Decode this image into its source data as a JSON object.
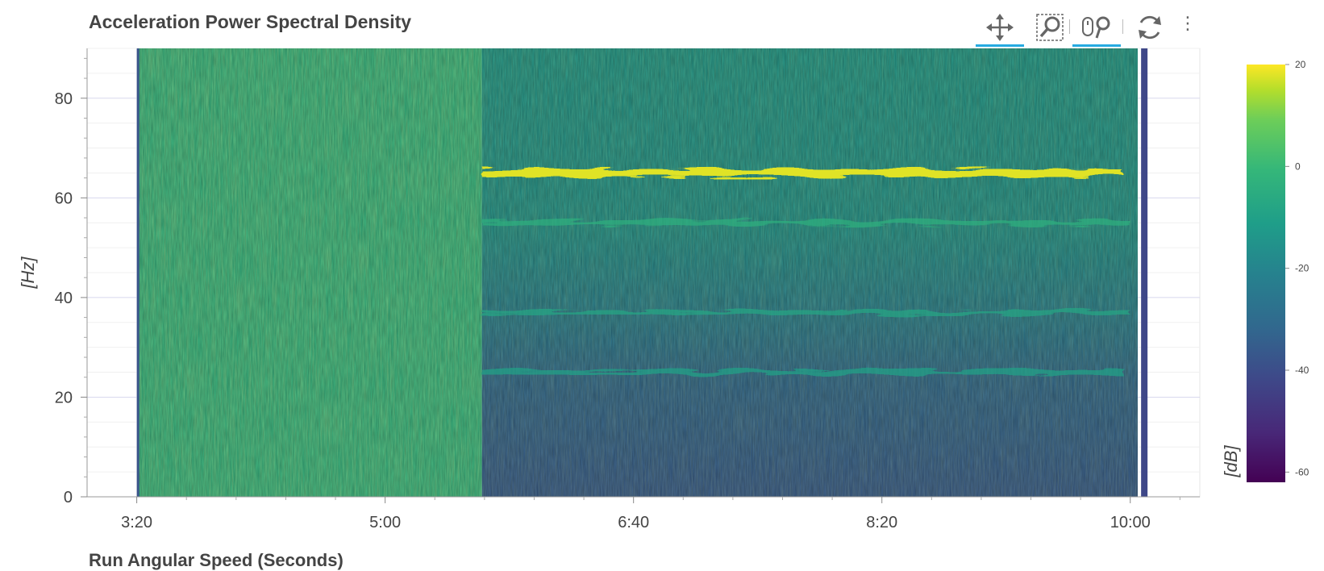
{
  "title": "Acceleration Power Spectral Density",
  "toolbar": {
    "tools": [
      {
        "name": "pan-tool",
        "icon": "move-arrows-icon",
        "active": true
      },
      {
        "name": "box-zoom-tool",
        "icon": "box-zoom-icon",
        "active": false
      },
      {
        "name": "wheel-zoom-tool",
        "icon": "wheel-zoom-icon",
        "active": true
      },
      {
        "name": "reset-tool",
        "icon": "reset-icon",
        "active": false
      }
    ],
    "more_icon": "more-vertical-icon"
  },
  "x_axis_title_partial": "Run Angular Speed (Seconds)",
  "chart_data": {
    "type": "heatmap",
    "title": "Acceleration Power Spectral Density",
    "xlabel": "",
    "ylabel": "[Hz]",
    "x_ticks": [
      "3:20",
      "5:00",
      "6:40",
      "8:20",
      "10:00"
    ],
    "x_tick_values_seconds": [
      200,
      300,
      400,
      500,
      600
    ],
    "xlim_seconds": [
      180,
      628
    ],
    "y_ticks": [
      0,
      20,
      40,
      60,
      80
    ],
    "ylim": [
      0,
      90
    ],
    "data_x_range_seconds": [
      201,
      605
    ],
    "colorbar": {
      "label": "[dB]",
      "ticks": [
        20,
        0,
        -20,
        -40,
        -60
      ],
      "range": [
        -62,
        20
      ],
      "colormap": "viridis"
    },
    "regions": [
      {
        "x_start": 201,
        "x_end": 339,
        "description_level_db": -4
      },
      {
        "x_start": 339,
        "x_end": 603,
        "description_level_db": -22
      }
    ],
    "bands": [
      {
        "freq_hz": 65,
        "level_db": 18,
        "x_start": 339,
        "x_end": 597
      },
      {
        "freq_hz": 55,
        "level_db": -4,
        "x_start": 339,
        "x_end": 600
      },
      {
        "freq_hz": 37,
        "level_db": -8,
        "x_start": 339,
        "x_end": 600
      },
      {
        "freq_hz": 25,
        "level_db": -10,
        "x_start": 339,
        "x_end": 597
      }
    ],
    "grid": true
  }
}
